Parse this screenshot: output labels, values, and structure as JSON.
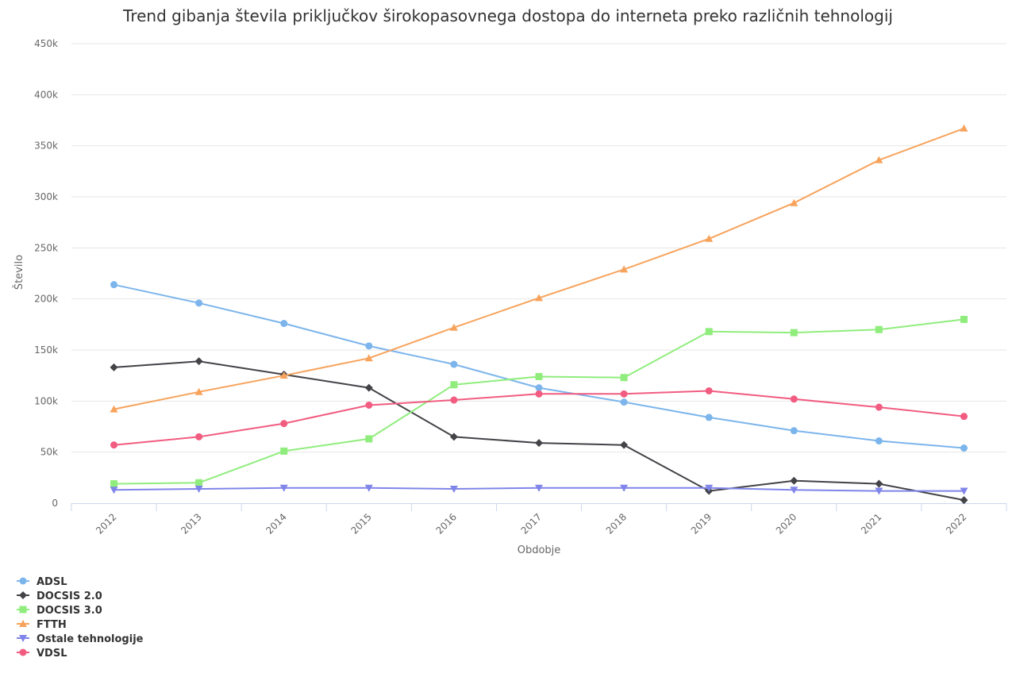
{
  "chart_data": {
    "type": "line",
    "title": "Trend gibanja števila priključkov širokopasovnega dostopa do interneta preko različnih tehnologij",
    "xlabel": "Obdobje",
    "ylabel": "Število",
    "categories": [
      "2012",
      "2013",
      "2014",
      "2015",
      "2016",
      "2017",
      "2018",
      "2019",
      "2020",
      "2021",
      "2022"
    ],
    "ylim": [
      0,
      450000
    ],
    "yticks": [
      0,
      50000,
      100000,
      150000,
      200000,
      250000,
      300000,
      350000,
      400000,
      450000
    ],
    "ytick_labels": [
      "0",
      "50k",
      "100k",
      "150k",
      "200k",
      "250k",
      "300k",
      "350k",
      "400k",
      "450k"
    ],
    "grid": true,
    "legend_position": "bottom-left",
    "series": [
      {
        "name": "ADSL",
        "color": "#7cb5ec",
        "marker": "circle",
        "values": [
          214000,
          196000,
          176000,
          154000,
          136000,
          113000,
          99000,
          84000,
          71000,
          61000,
          54000
        ]
      },
      {
        "name": "DOCSIS 2.0",
        "color": "#434348",
        "marker": "diamond",
        "values": [
          133000,
          139000,
          126000,
          113000,
          65000,
          59000,
          57000,
          12000,
          22000,
          19000,
          3000
        ]
      },
      {
        "name": "DOCSIS 3.0",
        "color": "#90ed7d",
        "marker": "square",
        "values": [
          19000,
          20000,
          51000,
          63000,
          116000,
          124000,
          123000,
          168000,
          167000,
          170000,
          180000
        ]
      },
      {
        "name": "FTTH",
        "color": "#f7a35c",
        "marker": "triangle",
        "values": [
          92000,
          109000,
          125000,
          142000,
          172000,
          201000,
          229000,
          259000,
          294000,
          336000,
          367000
        ]
      },
      {
        "name": "Ostale tehnologije",
        "color": "#8085e9",
        "marker": "triangle-down",
        "values": [
          13000,
          14000,
          15000,
          15000,
          14000,
          15000,
          15000,
          15000,
          13000,
          12000,
          12000
        ]
      },
      {
        "name": "VDSL",
        "color": "#f15c80",
        "marker": "circle",
        "values": [
          57000,
          65000,
          78000,
          96000,
          101000,
          107000,
          107000,
          110000,
          102000,
          94000,
          85000
        ]
      }
    ]
  }
}
